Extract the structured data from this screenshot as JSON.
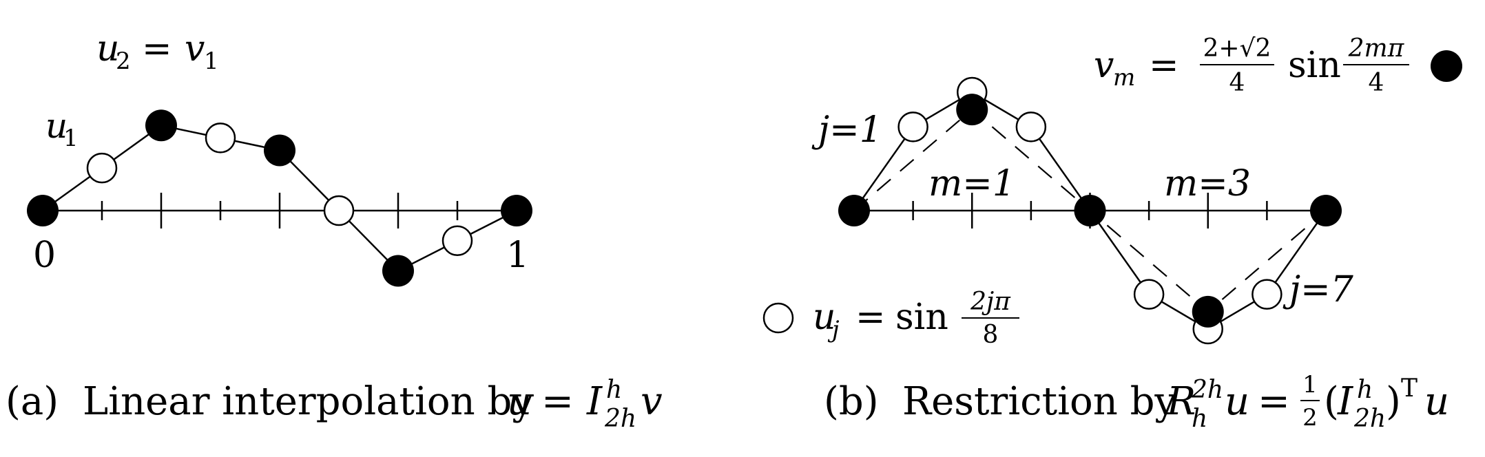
{
  "panel_a": {
    "caption": {
      "tag": "(a)",
      "text": "Linear interpolation by",
      "formula": {
        "lhs": "u",
        "eq": "=",
        "op": "I",
        "sup": "h",
        "sub": "2h",
        "rhs": "v"
      }
    },
    "label_zero": "0",
    "label_one": "1",
    "label_u1": {
      "base": "u",
      "sub": "1"
    },
    "label_u2v1": {
      "lhs_base": "u",
      "lhs_sub": "2",
      "eq": "=",
      "rhs_base": "v",
      "rhs_sub": "1"
    },
    "coarse_values": [
      0,
      0.7071,
      0.5,
      -0.5
    ],
    "end_value": 0,
    "ticks": 8
  },
  "panel_b": {
    "caption": {
      "tag": "(b)",
      "text": "Restriction by",
      "formula": {
        "op": "R",
        "op_sub": "h",
        "op_sup": "2h",
        "arg": "u",
        "eq": "=",
        "frac_num": "1",
        "frac_den": "2",
        "inner_op": "I",
        "inner_sup": "h",
        "inner_sub": "2h",
        "transpose": "T",
        "rhs": "u"
      }
    },
    "label_j1": "j=1",
    "label_j7": "j=7",
    "label_m1": "m=1",
    "label_m3": "m=3",
    "legend_filled": {
      "base": "v",
      "sub": "m",
      "eq": "=",
      "frac1_num": "2+√2",
      "frac1_den": "4",
      "func": "sin",
      "frac2_num": "2mπ",
      "frac2_den": "4"
    },
    "legend_open": {
      "base": "u",
      "sub": "j",
      "eq": "=",
      "func": "sin",
      "frac_num": "2jπ",
      "frac_den": "8"
    },
    "fine_values": [
      0,
      0.7071,
      1,
      0.7071,
      0,
      -0.7071,
      -1,
      -0.7071,
      0
    ],
    "coarse_values": [
      0,
      0.8536,
      0,
      -0.8536,
      0
    ]
  }
}
